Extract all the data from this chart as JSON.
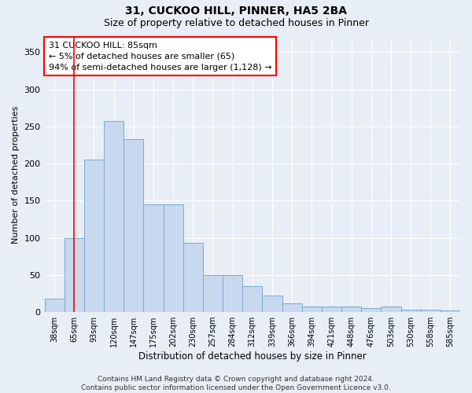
{
  "title1": "31, CUCKOO HILL, PINNER, HA5 2BA",
  "title2": "Size of property relative to detached houses in Pinner",
  "xlabel": "Distribution of detached houses by size in Pinner",
  "ylabel": "Number of detached properties",
  "bar_color": "#c8d8ee",
  "bar_edge_color": "#7aaacf",
  "categories": [
    "38sqm",
    "65sqm",
    "93sqm",
    "120sqm",
    "147sqm",
    "175sqm",
    "202sqm",
    "230sqm",
    "257sqm",
    "284sqm",
    "312sqm",
    "339sqm",
    "366sqm",
    "394sqm",
    "421sqm",
    "448sqm",
    "476sqm",
    "503sqm",
    "530sqm",
    "558sqm",
    "585sqm"
  ],
  "values": [
    18,
    100,
    205,
    257,
    233,
    145,
    145,
    93,
    50,
    50,
    35,
    22,
    12,
    8,
    7,
    7,
    5,
    7,
    3,
    3,
    2
  ],
  "red_line_x": 1,
  "annotation_line1": "31 CUCKOO HILL: 85sqm",
  "annotation_line2": "← 5% of detached houses are smaller (65)",
  "annotation_line3": "94% of semi-detached houses are larger (1,128) →",
  "ylim": [
    0,
    370
  ],
  "yticks": [
    0,
    50,
    100,
    150,
    200,
    250,
    300,
    350
  ],
  "footer": "Contains HM Land Registry data © Crown copyright and database right 2024.\nContains public sector information licensed under the Open Government Licence v3.0.",
  "bg_color": "#e8eef5",
  "plot_bg_color": "#e8eef5",
  "grid_color": "#ffffff",
  "title1_fontsize": 10,
  "title2_fontsize": 9
}
